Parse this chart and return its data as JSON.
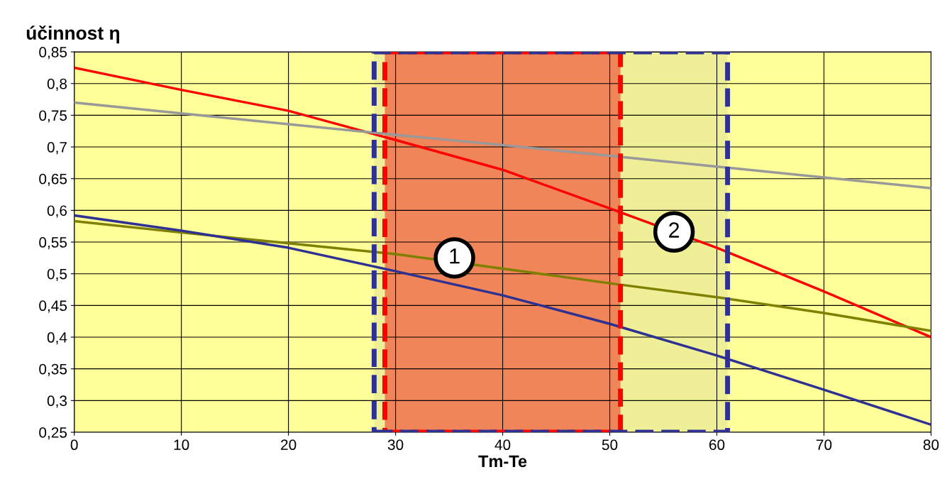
{
  "chart_data": {
    "type": "line",
    "ylabel": "účinnost η",
    "xlabel": "Tm-Te",
    "x": [
      0,
      10,
      20,
      30,
      40,
      50,
      60,
      70,
      80
    ],
    "series": [
      {
        "color": "#ff0000",
        "values": [
          0.825,
          0.79,
          0.757,
          0.711,
          0.664,
          0.603,
          0.541,
          0.472,
          0.4
        ]
      },
      {
        "color": "#999999",
        "values": [
          0.77,
          0.753,
          0.736,
          0.719,
          0.703,
          0.686,
          0.669,
          0.652,
          0.635
        ]
      },
      {
        "color": "#808000",
        "values": [
          0.583,
          0.565,
          0.548,
          0.531,
          0.508,
          0.485,
          0.463,
          0.438,
          0.41
        ]
      },
      {
        "color": "#2e3192",
        "values": [
          0.592,
          0.568,
          0.541,
          0.504,
          0.466,
          0.421,
          0.371,
          0.317,
          0.262
        ]
      }
    ],
    "xlim": [
      0,
      80
    ],
    "xticks": [
      0,
      10,
      20,
      30,
      40,
      50,
      60,
      70,
      80
    ],
    "ylim": [
      0.25,
      0.85
    ],
    "yticks": [
      {
        "value": 0.25,
        "label": "0,25"
      },
      {
        "value": 0.3,
        "label": "0,3"
      },
      {
        "value": 0.35,
        "label": "0,35"
      },
      {
        "value": 0.4,
        "label": "0,4"
      },
      {
        "value": 0.45,
        "label": "0,45"
      },
      {
        "value": 0.5,
        "label": "0,5"
      },
      {
        "value": 0.55,
        "label": "0,55"
      },
      {
        "value": 0.6,
        "label": "0,6"
      },
      {
        "value": 0.65,
        "label": "0,65"
      },
      {
        "value": 0.7,
        "label": "0,7"
      },
      {
        "value": 0.75,
        "label": "0,75"
      },
      {
        "value": 0.8,
        "label": "0,8"
      },
      {
        "value": 0.85,
        "label": "0,85"
      }
    ],
    "grid": true,
    "marker": "none",
    "line_style": "solid",
    "bands": [
      {
        "axis": "x",
        "from": 29,
        "to": 51,
        "color": "#ff0000"
      },
      {
        "axis": "x",
        "from": 28,
        "to": 61,
        "color": "#2e3192"
      }
    ],
    "annotations": [
      {
        "text": "1",
        "x": 35.5,
        "y": 0.525
      },
      {
        "text": "2",
        "x": 56,
        "y": 0.566
      }
    ]
  }
}
